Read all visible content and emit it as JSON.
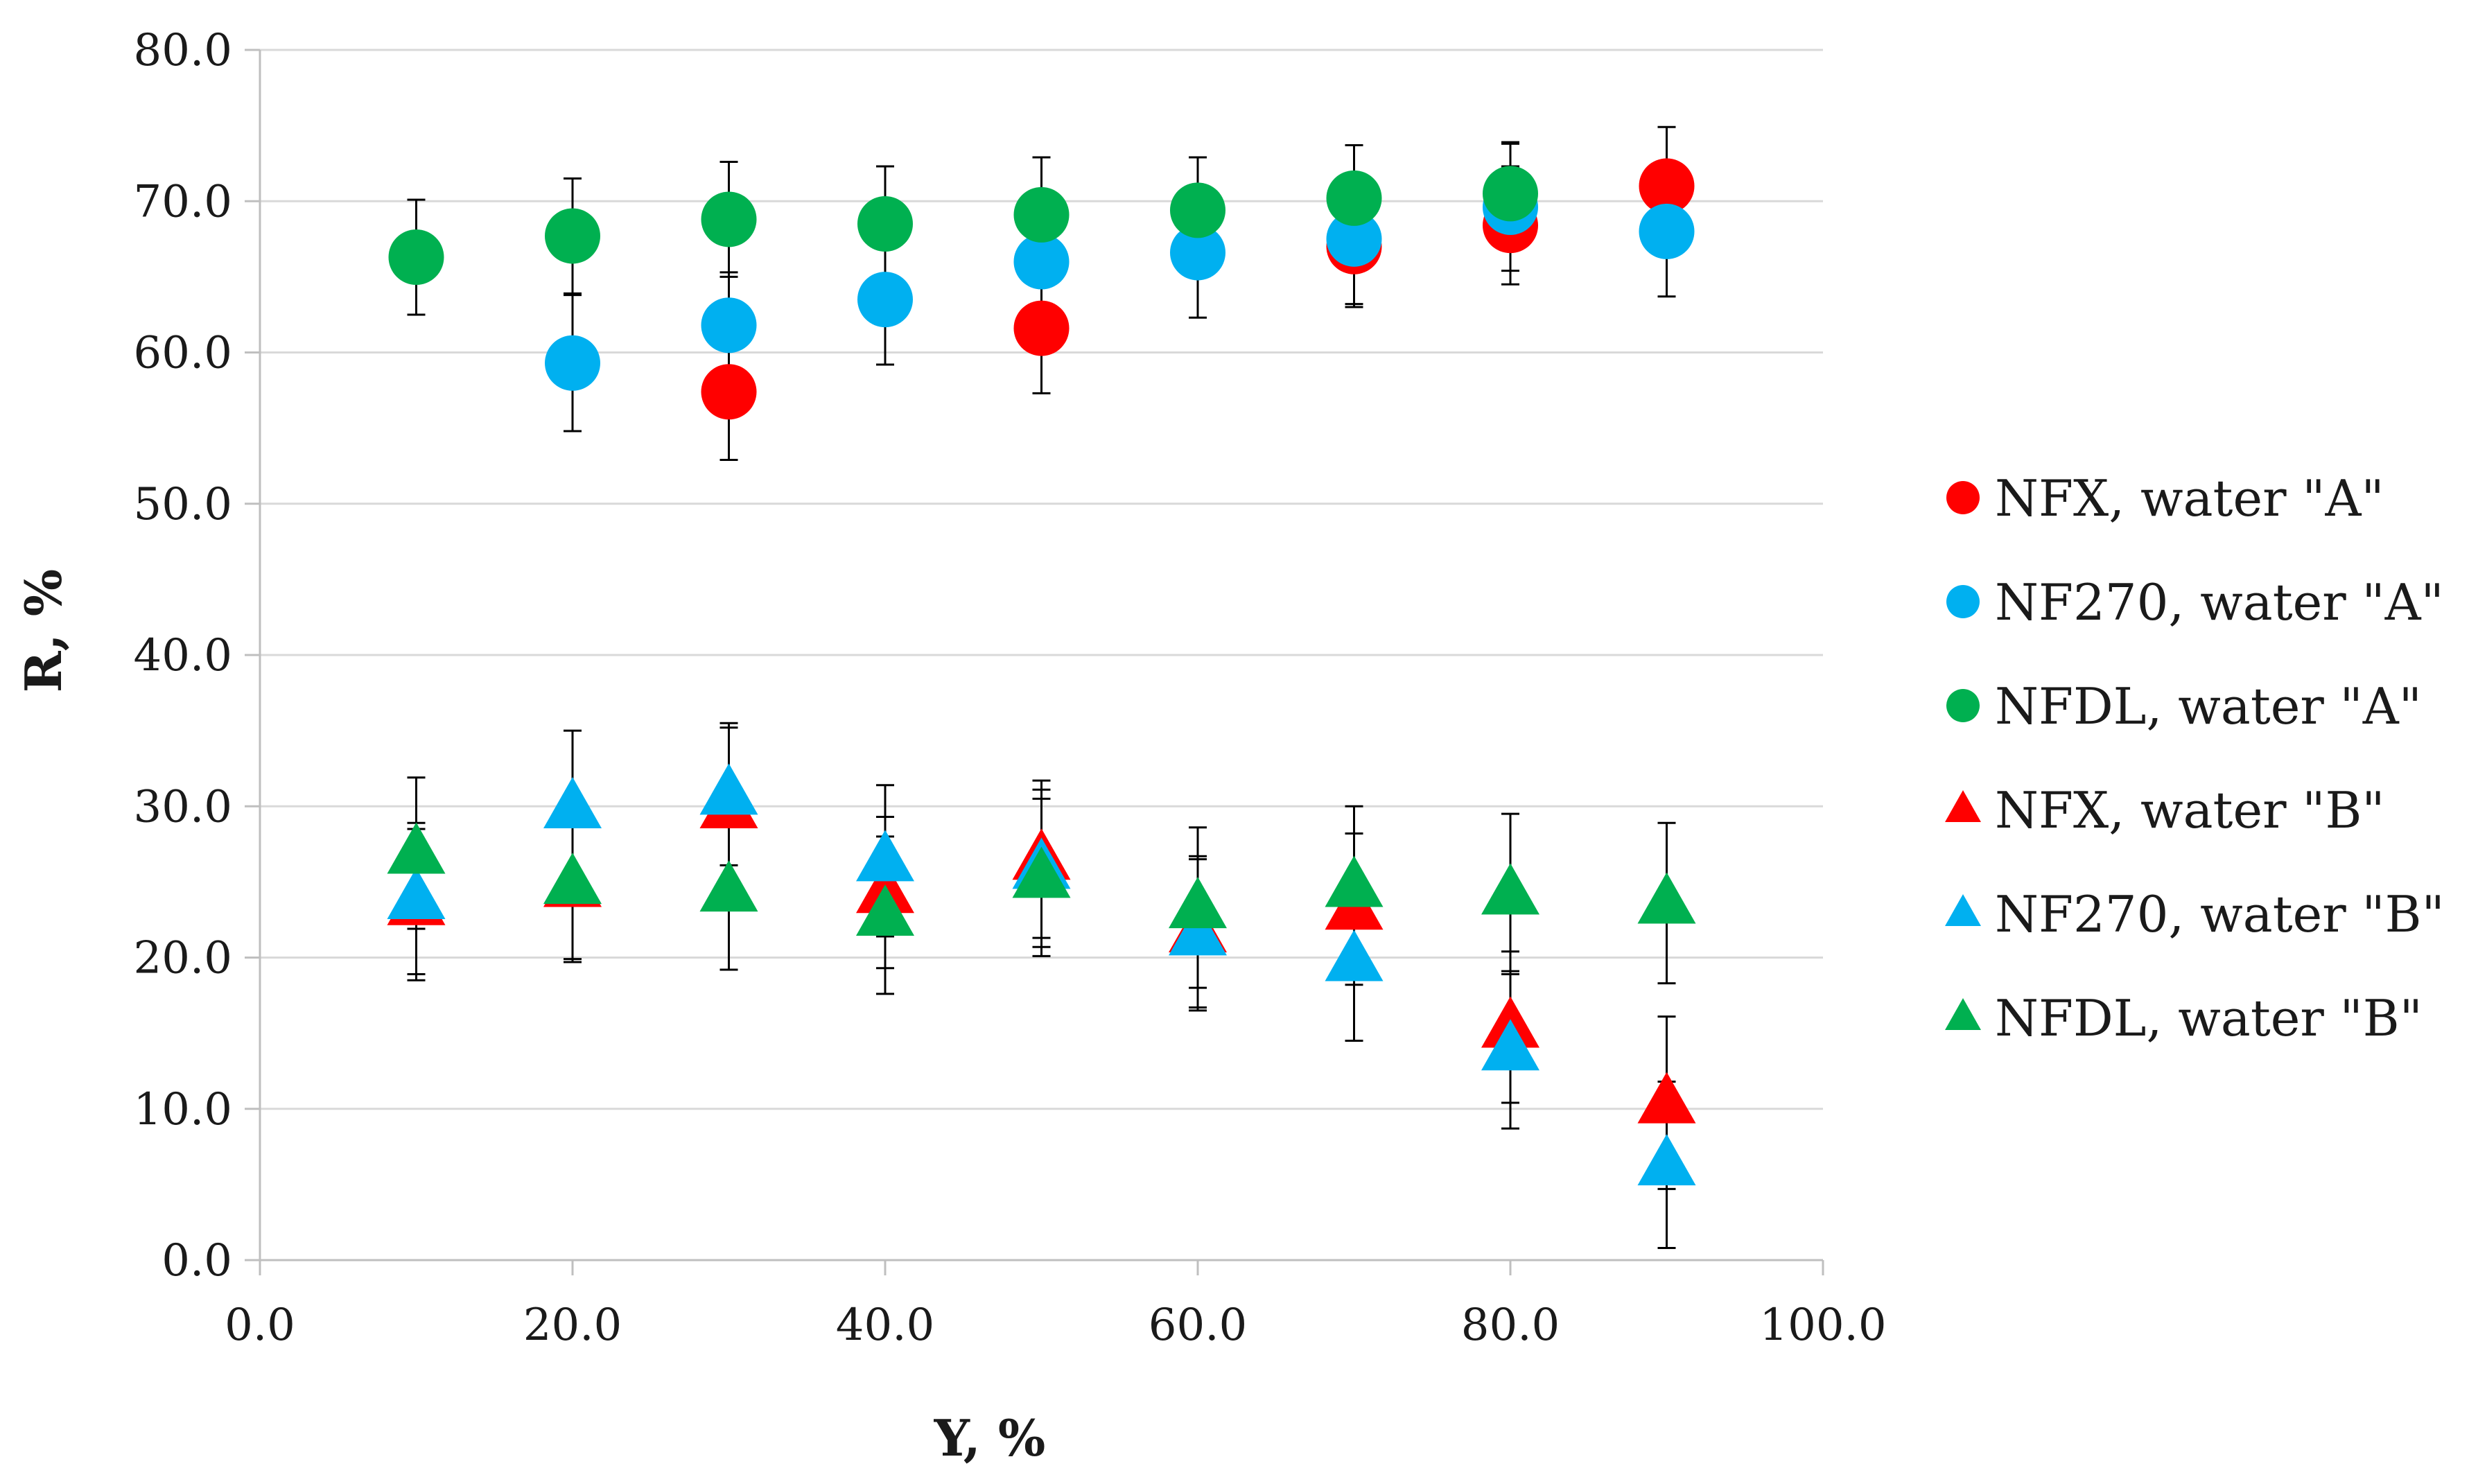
{
  "chart_data": {
    "type": "scatter",
    "title": "",
    "xlabel": "Y, %",
    "ylabel": "R, %",
    "xlim": [
      0,
      100
    ],
    "ylim": [
      0,
      80
    ],
    "x_ticks": [
      "0.0",
      "20.0",
      "40.0",
      "60.0",
      "80.0",
      "100.0"
    ],
    "y_ticks": [
      "0.0",
      "10.0",
      "20.0",
      "30.0",
      "40.0",
      "50.0",
      "60.0",
      "70.0",
      "80.0"
    ],
    "grid": "horizontal",
    "legend_position": "right",
    "error_bar_color": "#000000",
    "grid_color": "#d9d9d9",
    "axis_color": "#bfbfbf",
    "series": [
      {
        "name": "NFX, water \"A\"",
        "marker": "circle",
        "color": "#ff0000",
        "points": [
          {
            "x": 30,
            "y": 57.4,
            "err": 4.5
          },
          {
            "x": 50,
            "y": 61.6,
            "err": 4.3
          },
          {
            "x": 70,
            "y": 67.0,
            "err": 4.0
          },
          {
            "x": 80,
            "y": 68.4,
            "err": 3.9
          },
          {
            "x": 90,
            "y": 71.0,
            "err": 3.9
          }
        ]
      },
      {
        "name": "NF270, water \"A\"",
        "marker": "circle",
        "color": "#00b0f0",
        "points": [
          {
            "x": 20,
            "y": 59.3,
            "err": 4.5
          },
          {
            "x": 30,
            "y": 61.8,
            "err": 3.5
          },
          {
            "x": 40,
            "y": 63.5,
            "err": 4.3
          },
          {
            "x": 50,
            "y": 66.0,
            "err": 4.0
          },
          {
            "x": 60,
            "y": 66.6,
            "err": 4.3
          },
          {
            "x": 70,
            "y": 67.5,
            "err": 4.3
          },
          {
            "x": 80,
            "y": 69.6,
            "err": 4.2
          },
          {
            "x": 90,
            "y": 68.0,
            "err": 4.3
          }
        ]
      },
      {
        "name": "NFDL, water \"A\"",
        "marker": "circle",
        "color": "#00b050",
        "points": [
          {
            "x": 10,
            "y": 66.3,
            "err": 3.8
          },
          {
            "x": 20,
            "y": 67.7,
            "err": 3.8
          },
          {
            "x": 30,
            "y": 68.8,
            "err": 3.8
          },
          {
            "x": 40,
            "y": 68.5,
            "err": 3.8
          },
          {
            "x": 50,
            "y": 69.1,
            "err": 3.8
          },
          {
            "x": 60,
            "y": 69.4,
            "err": 3.5
          },
          {
            "x": 70,
            "y": 70.2,
            "err": 3.5
          },
          {
            "x": 80,
            "y": 70.5,
            "err": 3.4
          }
        ]
      },
      {
        "name": "NFX, water \"B\"",
        "marker": "triangle",
        "color": "#ff0000",
        "points": [
          {
            "x": 10,
            "y": 23.5,
            "err": 5.0
          },
          {
            "x": 20,
            "y": 24.7,
            "err": 5.0
          },
          {
            "x": 30,
            "y": 29.9,
            "err": 5.3
          },
          {
            "x": 40,
            "y": 24.3,
            "err": 5.0
          },
          {
            "x": 50,
            "y": 26.5,
            "err": 5.2
          },
          {
            "x": 60,
            "y": 21.7,
            "err": 5.0
          },
          {
            "x": 70,
            "y": 23.2,
            "err": 5.0
          },
          {
            "x": 80,
            "y": 15.4,
            "err": 5.0
          },
          {
            "x": 90,
            "y": 10.4,
            "err": 5.7
          }
        ]
      },
      {
        "name": "NF270, water \"B\"",
        "marker": "triangle",
        "color": "#00b0f0",
        "points": [
          {
            "x": 10,
            "y": 23.9,
            "err": 5.0
          },
          {
            "x": 20,
            "y": 29.9,
            "err": 5.1
          },
          {
            "x": 30,
            "y": 30.8,
            "err": 4.7
          },
          {
            "x": 40,
            "y": 26.4,
            "err": 5.0
          },
          {
            "x": 50,
            "y": 25.9,
            "err": 5.2
          },
          {
            "x": 60,
            "y": 21.5,
            "err": 5.0
          },
          {
            "x": 70,
            "y": 19.8,
            "err": 5.3
          },
          {
            "x": 80,
            "y": 13.9,
            "err": 5.2
          },
          {
            "x": 90,
            "y": 6.3,
            "err": 5.5
          }
        ]
      },
      {
        "name": "NFDL, water \"B\"",
        "marker": "triangle",
        "color": "#00b050",
        "points": [
          {
            "x": 10,
            "y": 26.9,
            "err": 5.0
          },
          {
            "x": 20,
            "y": 24.9,
            "err": 5.0
          },
          {
            "x": 30,
            "y": 24.4,
            "err": 5.2
          },
          {
            "x": 40,
            "y": 22.8,
            "err": 5.2
          },
          {
            "x": 50,
            "y": 25.3,
            "err": 5.2
          },
          {
            "x": 60,
            "y": 23.3,
            "err": 5.3
          },
          {
            "x": 70,
            "y": 24.7,
            "err": 5.3
          },
          {
            "x": 80,
            "y": 24.2,
            "err": 5.3
          },
          {
            "x": 90,
            "y": 23.6,
            "err": 5.3
          }
        ]
      }
    ]
  }
}
